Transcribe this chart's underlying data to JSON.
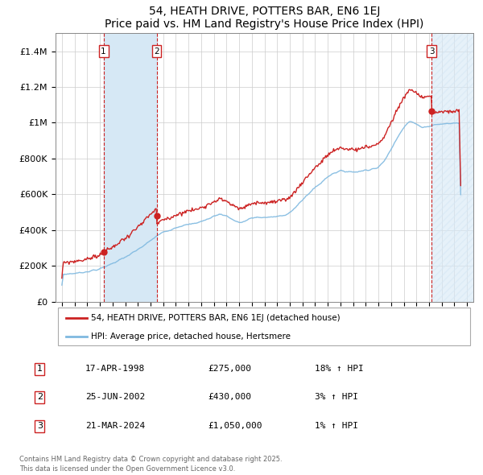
{
  "title": "54, HEATH DRIVE, POTTERS BAR, EN6 1EJ",
  "subtitle": "Price paid vs. HM Land Registry's House Price Index (HPI)",
  "legend_line1": "54, HEATH DRIVE, POTTERS BAR, EN6 1EJ (detached house)",
  "legend_line2": "HPI: Average price, detached house, Hertsmere",
  "transactions": [
    {
      "num": 1,
      "date": "17-APR-1998",
      "price": "£275,000",
      "hpi": "18% ↑ HPI",
      "year": 1998.29
    },
    {
      "num": 2,
      "date": "25-JUN-2002",
      "price": "£430,000",
      "hpi": "3% ↑ HPI",
      "year": 2002.48
    },
    {
      "num": 3,
      "date": "21-MAR-2024",
      "price": "£1,050,000",
      "hpi": "1% ↑ HPI",
      "year": 2024.22
    }
  ],
  "footer": "Contains HM Land Registry data © Crown copyright and database right 2025.\nThis data is licensed under the Open Government Licence v3.0.",
  "hpi_color": "#7fb9e0",
  "price_color": "#cc2222",
  "marker_color": "#cc2222",
  "shade_color": "#d6e8f5",
  "background_color": "#ffffff",
  "grid_color": "#cccccc",
  "ylim": [
    0,
    1500000
  ],
  "xlim_start": 1994.5,
  "xlim_end": 2027.5,
  "yticks": [
    0,
    200000,
    400000,
    600000,
    800000,
    1000000,
    1200000,
    1400000
  ],
  "ytick_labels": [
    "£0",
    "£200K",
    "£400K",
    "£600K",
    "£800K",
    "£1M",
    "£1.2M",
    "£1.4M"
  ],
  "xticks": [
    1995,
    1996,
    1997,
    1998,
    1999,
    2000,
    2001,
    2002,
    2003,
    2004,
    2005,
    2006,
    2007,
    2008,
    2009,
    2010,
    2011,
    2012,
    2013,
    2014,
    2015,
    2016,
    2017,
    2018,
    2019,
    2020,
    2021,
    2022,
    2023,
    2024,
    2025,
    2026,
    2027
  ],
  "hpi_base": [
    [
      1995.0,
      152000
    ],
    [
      1995.5,
      155000
    ],
    [
      1996.0,
      158000
    ],
    [
      1996.5,
      162000
    ],
    [
      1997.0,
      168000
    ],
    [
      1997.5,
      175000
    ],
    [
      1998.0,
      182000
    ],
    [
      1998.5,
      198000
    ],
    [
      1999.0,
      215000
    ],
    [
      1999.5,
      230000
    ],
    [
      2000.0,
      248000
    ],
    [
      2000.5,
      268000
    ],
    [
      2001.0,
      290000
    ],
    [
      2001.5,
      315000
    ],
    [
      2002.0,
      340000
    ],
    [
      2002.5,
      368000
    ],
    [
      2003.0,
      388000
    ],
    [
      2003.5,
      400000
    ],
    [
      2004.0,
      415000
    ],
    [
      2004.5,
      425000
    ],
    [
      2005.0,
      430000
    ],
    [
      2005.5,
      438000
    ],
    [
      2006.0,
      448000
    ],
    [
      2006.5,
      460000
    ],
    [
      2007.0,
      478000
    ],
    [
      2007.5,
      490000
    ],
    [
      2008.0,
      480000
    ],
    [
      2008.5,
      458000
    ],
    [
      2009.0,
      440000
    ],
    [
      2009.5,
      450000
    ],
    [
      2010.0,
      468000
    ],
    [
      2010.5,
      472000
    ],
    [
      2011.0,
      470000
    ],
    [
      2011.5,
      472000
    ],
    [
      2012.0,
      475000
    ],
    [
      2012.5,
      482000
    ],
    [
      2013.0,
      498000
    ],
    [
      2013.5,
      528000
    ],
    [
      2014.0,
      568000
    ],
    [
      2014.5,
      605000
    ],
    [
      2015.0,
      638000
    ],
    [
      2015.5,
      665000
    ],
    [
      2016.0,
      700000
    ],
    [
      2016.5,
      720000
    ],
    [
      2017.0,
      730000
    ],
    [
      2017.5,
      728000
    ],
    [
      2018.0,
      725000
    ],
    [
      2018.5,
      728000
    ],
    [
      2019.0,
      735000
    ],
    [
      2019.5,
      742000
    ],
    [
      2020.0,
      748000
    ],
    [
      2020.5,
      790000
    ],
    [
      2021.0,
      850000
    ],
    [
      2021.5,
      920000
    ],
    [
      2022.0,
      975000
    ],
    [
      2022.5,
      1010000
    ],
    [
      2023.0,
      990000
    ],
    [
      2023.5,
      975000
    ],
    [
      2024.0,
      980000
    ],
    [
      2024.5,
      990000
    ],
    [
      2025.0,
      992000
    ],
    [
      2025.5,
      995000
    ],
    [
      2026.0,
      998000
    ]
  ],
  "sale1_year": 1998.29,
  "sale2_year": 2002.48,
  "sale3_year": 2024.22,
  "sale1_price": 275000,
  "sale2_price": 430000,
  "sale3_price": 1050000
}
